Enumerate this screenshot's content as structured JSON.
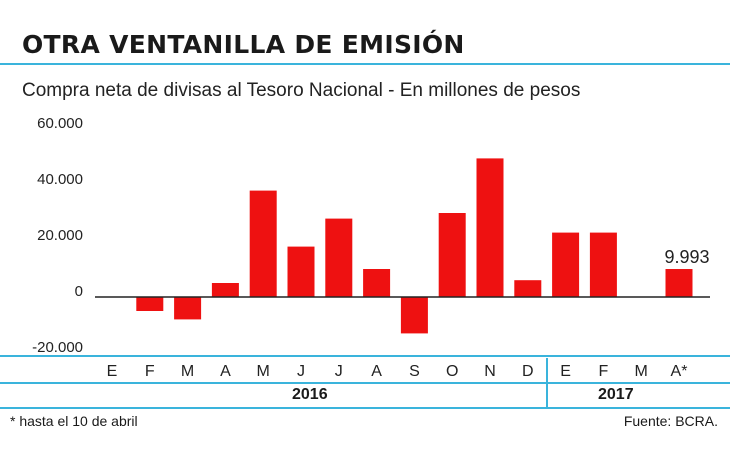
{
  "header": {
    "title": "OTRA VENTANILLA DE EMISIÓN",
    "subtitle": "Compra neta de divisas al Tesoro Nacional - En millones de pesos"
  },
  "chart_data": {
    "type": "bar",
    "title": "OTRA VENTANILLA DE EMISIÓN",
    "subtitle": "Compra neta de divisas al Tesoro Nacional - En millones de pesos",
    "categories": [
      "E",
      "F",
      "M",
      "A",
      "M",
      "J",
      "J",
      "A",
      "S",
      "O",
      "N",
      "D",
      "E",
      "F",
      "M",
      "A*"
    ],
    "values": [
      0,
      -5000,
      -8000,
      5000,
      38000,
      18000,
      28000,
      10000,
      -13000,
      30000,
      49500,
      6000,
      23000,
      23000,
      0,
      9993
    ],
    "value_labels": [
      "",
      "",
      "",
      "",
      "",
      "",
      "",
      "",
      "",
      "",
      "",
      "",
      "",
      "",
      "",
      "9.993"
    ],
    "y_ticks": [
      60000,
      40000,
      20000,
      0,
      -20000
    ],
    "y_tick_labels": [
      "60.000",
      "40.000",
      "20.000",
      "0",
      "-20.000"
    ],
    "ylim": [
      -20000,
      60000
    ],
    "year_groups": [
      {
        "label": "2016",
        "count": 12
      },
      {
        "label": "2017",
        "count": 4
      }
    ],
    "bar_color": "#ee1111",
    "accent_color": "#3ab4dc"
  },
  "footer": {
    "note": "* hasta el 10 de abril",
    "source": "Fuente: BCRA."
  }
}
